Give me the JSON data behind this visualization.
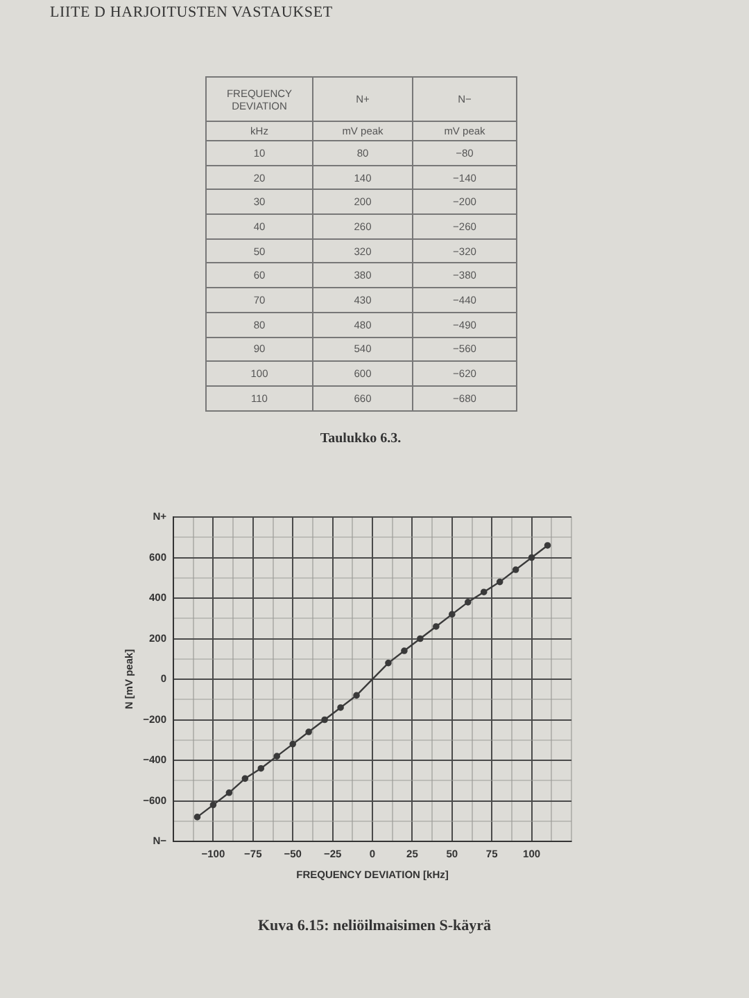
{
  "chart_data": {
    "type": "line",
    "title": "Kuva 6.15: neliöilmaisimen S-käyrä",
    "xlabel": "FREQUENCY DEVIATION [kHz]",
    "ylabel": "N [mV peak]",
    "annotations": [
      "LIITE D HARJOITUSTEN VASTAUKSET",
      "FREQUENCY DEVIATION",
      "N+",
      "N−",
      "kHz",
      "mV peak",
      "mV peak",
      "10",
      "80",
      "−80",
      "20",
      "140",
      "−140",
      "30",
      "200",
      "−200",
      "40",
      "260",
      "−260",
      "50",
      "320",
      "−320",
      "60",
      "380",
      "−380",
      "70",
      "430",
      "−440",
      "80",
      "480",
      "−490",
      "90",
      "540",
      "−560",
      "100",
      "600",
      "−620",
      "110",
      "660",
      "−680",
      "Taulukko 6.3."
    ],
    "x": [
      -110,
      -100,
      -90,
      -80,
      -70,
      -60,
      -50,
      -40,
      -30,
      -20,
      -10,
      10,
      20,
      30,
      40,
      50,
      60,
      70,
      80,
      90,
      100,
      110
    ],
    "values": [
      -680,
      -620,
      -560,
      -490,
      -440,
      -380,
      -320,
      -260,
      -200,
      -140,
      -80,
      80,
      140,
      200,
      260,
      320,
      380,
      430,
      480,
      540,
      600,
      660
    ],
    "color": "#3a3a3a",
    "marker": "circle",
    "line_style": "solid",
    "grid": true,
    "xlim": [
      -125,
      125
    ],
    "xticks": [
      {
        "value": -125,
        "label": null
      },
      {
        "value": -112.5,
        "label": null
      },
      -100,
      {
        "value": -87.5,
        "label": null
      },
      -75,
      {
        "value": -62.5,
        "label": null
      },
      -50,
      {
        "value": -37.5,
        "label": null
      },
      -25,
      {
        "value": -12.5,
        "label": null
      },
      0,
      {
        "value": 12.5,
        "label": null
      },
      25,
      {
        "value": 37.5,
        "label": null
      },
      50,
      {
        "value": 62.5,
        "label": null
      },
      75,
      {
        "value": 87.5,
        "label": null
      },
      100,
      {
        "value": 112.5,
        "label": null
      },
      {
        "value": 125,
        "label": null
      }
    ],
    "ylim": [
      -800,
      800
    ],
    "yticks": [
      {
        "value": -800,
        "label": "N−"
      },
      {
        "value": -700,
        "label": null
      },
      -600,
      {
        "value": -500,
        "label": null
      },
      -400,
      {
        "value": -300,
        "label": null
      },
      -200,
      {
        "value": -100,
        "label": null
      },
      0,
      {
        "value": 100,
        "label": null
      },
      200,
      {
        "value": 300,
        "label": null
      },
      400,
      {
        "value": 500,
        "label": null
      },
      600,
      {
        "value": 700,
        "label": null
      },
      {
        "value": 800,
        "label": "N+"
      }
    ]
  }
}
